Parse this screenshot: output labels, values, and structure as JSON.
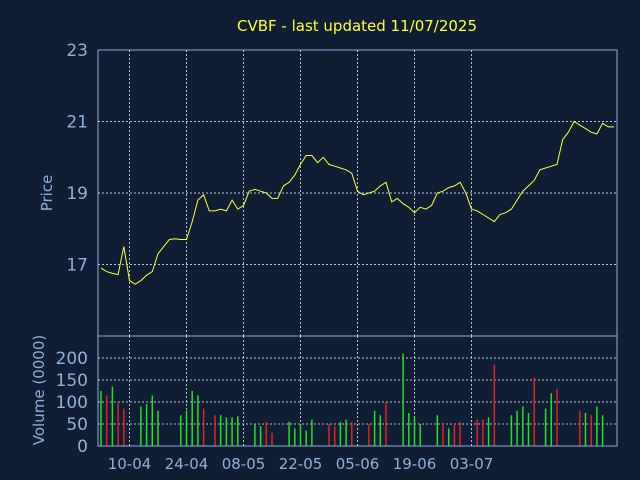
{
  "colors": {
    "background": "#0f1e35",
    "frame": "#8fb0d8",
    "grid": "#b8c4d8",
    "title": "#ffff33",
    "label": "#8fb0d8",
    "price_line": "#ffff33",
    "volume_up": "#22e022",
    "volume_down": "#e02222"
  },
  "chart_data": [
    {
      "type": "line",
      "title": "CVBF - last updated 11/07/2025",
      "ylabel": "Price",
      "ylim": [
        15,
        23
      ],
      "yticks": [
        17,
        19,
        21,
        23
      ],
      "grid": true,
      "x_tick_labels": [
        "10-04",
        "24-04",
        "08-05",
        "22-05",
        "05-06",
        "19-06",
        "03-07"
      ],
      "x_tick_index": [
        5,
        15,
        25,
        35,
        45,
        55,
        65
      ],
      "series": [
        {
          "values": [
            16.9,
            16.8,
            16.75,
            16.72,
            17.5,
            16.55,
            16.45,
            16.55,
            16.7,
            16.8,
            17.3,
            17.5,
            17.7,
            17.72,
            17.7,
            17.7,
            18.2,
            18.8,
            18.95,
            18.5,
            18.5,
            18.55,
            18.5,
            18.8,
            18.55,
            18.65,
            19.05,
            19.1,
            19.05,
            19.0,
            18.85,
            18.85,
            19.2,
            19.3,
            19.5,
            19.8,
            20.05,
            20.05,
            19.85,
            20.0,
            19.8,
            19.75,
            19.7,
            19.65,
            19.55,
            19.05,
            18.95,
            19.0,
            19.05,
            19.2,
            19.3,
            18.75,
            18.85,
            18.7,
            18.6,
            18.45,
            18.6,
            18.55,
            18.65,
            19.0,
            19.05,
            19.15,
            19.2,
            19.3,
            19.0,
            18.55,
            18.5,
            18.4,
            18.3,
            18.2,
            18.4,
            18.45,
            18.55,
            18.8,
            19.05,
            19.2,
            19.35,
            19.65,
            19.7,
            19.75,
            19.8,
            20.5,
            20.7,
            21.0,
            20.9,
            20.8,
            20.7,
            20.65,
            20.95,
            20.85,
            20.85
          ]
        }
      ]
    },
    {
      "type": "bar",
      "ylabel": "Volume (0000)",
      "ylim": [
        0,
        250
      ],
      "yticks": [
        0,
        50,
        100,
        150,
        200,
        250
      ],
      "grid": true,
      "series": [
        {
          "name": "volume",
          "values": [
            125,
            115,
            135,
            100,
            85,
            0,
            0,
            90,
            95,
            115,
            80,
            0,
            0,
            0,
            70,
            80,
            125,
            115,
            85,
            0,
            70,
            70,
            65,
            65,
            68,
            0,
            0,
            50,
            45,
            55,
            30,
            0,
            0,
            55,
            40,
            50,
            35,
            60,
            0,
            0,
            50,
            45,
            55,
            60,
            55,
            0,
            0,
            50,
            80,
            70,
            100,
            0,
            0,
            210,
            75,
            65,
            50,
            0,
            0,
            70,
            50,
            40,
            50,
            55,
            0,
            0,
            60,
            60,
            65,
            185,
            0,
            0,
            70,
            80,
            90,
            75,
            155,
            0,
            85,
            120,
            130,
            0,
            0,
            0,
            80,
            75,
            70,
            90,
            70,
            0
          ],
          "direction": [
            "up",
            "down",
            "up",
            "down",
            "down",
            "up",
            "up",
            "up",
            "up",
            "up",
            "up",
            "up",
            "up",
            "up",
            "up",
            "up",
            "up",
            "up",
            "down",
            "up",
            "down",
            "up",
            "up",
            "up",
            "up",
            "up",
            "up",
            "up",
            "up",
            "down",
            "down",
            "up",
            "up",
            "up",
            "up",
            "up",
            "up",
            "up",
            "up",
            "up",
            "down",
            "down",
            "up",
            "up",
            "down",
            "up",
            "up",
            "down",
            "up",
            "up",
            "down",
            "up",
            "up",
            "up",
            "up",
            "up",
            "up",
            "up",
            "up",
            "up",
            "down",
            "up",
            "down",
            "down",
            "up",
            "up",
            "down",
            "down",
            "up",
            "down",
            "up",
            "up",
            "up",
            "up",
            "up",
            "up",
            "down",
            "up",
            "up",
            "up",
            "down",
            "up",
            "up",
            "up",
            "down",
            "up",
            "down",
            "up",
            "up",
            "up"
          ]
        }
      ]
    }
  ]
}
